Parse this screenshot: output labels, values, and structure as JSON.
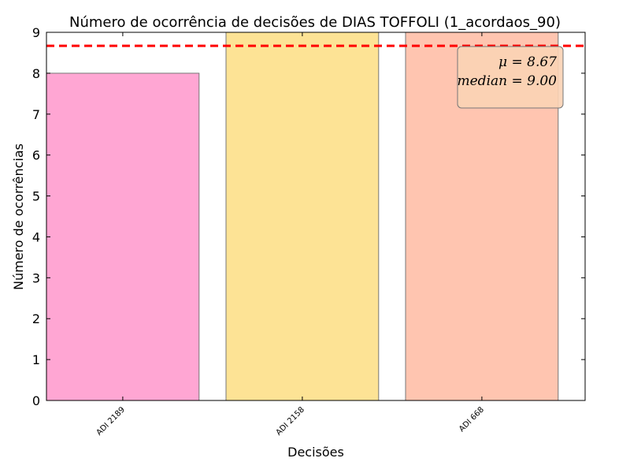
{
  "chart_data": {
    "type": "bar",
    "title": "Número de ocorrência de decisões de DIAS TOFFOLI (1_acordaos_90)",
    "xlabel": "Decisões",
    "ylabel": "Número de ocorrências",
    "categories": [
      "ADI 2189",
      "ADI 2158",
      "ADI 668"
    ],
    "values": [
      8,
      9,
      9
    ],
    "colors": [
      "#ffa6d3",
      "#fde395",
      "#ffc5b0"
    ],
    "ylim": [
      0,
      9
    ],
    "yticks": [
      0,
      1,
      2,
      3,
      4,
      5,
      6,
      7,
      8,
      9
    ],
    "mean_line": {
      "value": 8.67,
      "color": "#ff0000",
      "style": "dashed"
    },
    "stats_box": {
      "mean_text": "μ = 8.67",
      "median_text": "median = 9.00",
      "placement": "top-right"
    },
    "grid": false
  }
}
